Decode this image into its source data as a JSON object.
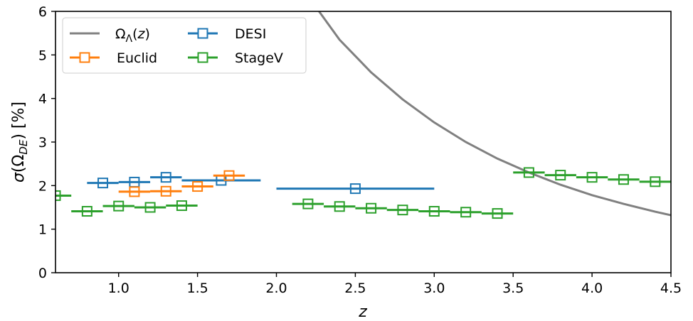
{
  "chart_data": {
    "type": "scatter",
    "xlabel": "z",
    "ylabel_prefix": "σ(Ω",
    "ylabel_sub": "DE",
    "ylabel_suffix": ") [%]",
    "xlim": [
      0.6,
      4.5
    ],
    "ylim": [
      0,
      6
    ],
    "xticks": [
      1.0,
      1.5,
      2.0,
      2.5,
      3.0,
      3.5,
      4.0,
      4.5
    ],
    "xtick_labels": [
      "1.0",
      "1.5",
      "2.0",
      "2.5",
      "3.0",
      "3.5",
      "4.0",
      "4.5"
    ],
    "yticks": [
      0,
      1,
      2,
      3,
      4,
      5,
      6
    ],
    "ytick_labels": [
      "0",
      "1",
      "2",
      "3",
      "4",
      "5",
      "6"
    ],
    "grid": false,
    "legend_placement": "top-left",
    "curve": {
      "name_main": "Ω",
      "name_sub": "Λ",
      "name_suffix": "(z)",
      "color": "#808080",
      "x": [
        2.27,
        2.4,
        2.6,
        2.8,
        3.0,
        3.2,
        3.4,
        3.6,
        3.8,
        4.0,
        4.2,
        4.4,
        4.5
      ],
      "y": [
        6.0,
        5.35,
        4.6,
        3.98,
        3.45,
        3.0,
        2.62,
        2.3,
        2.02,
        1.78,
        1.58,
        1.4,
        1.32
      ]
    },
    "series": [
      {
        "name": "DESI",
        "color": "#1f77b4",
        "points": [
          {
            "x": 0.9,
            "y": 2.06,
            "xerr": 0.1
          },
          {
            "x": 1.1,
            "y": 2.08,
            "xerr": 0.1
          },
          {
            "x": 1.3,
            "y": 2.19,
            "xerr": 0.1
          },
          {
            "x": 1.65,
            "y": 2.12,
            "xerr": 0.25
          },
          {
            "x": 2.5,
            "y": 1.93,
            "xerr": 0.5
          }
        ]
      },
      {
        "name": "Euclid",
        "color": "#ff7f0e",
        "points": [
          {
            "x": 1.1,
            "y": 1.86,
            "xerr": 0.1
          },
          {
            "x": 1.3,
            "y": 1.87,
            "xerr": 0.1
          },
          {
            "x": 1.5,
            "y": 1.98,
            "xerr": 0.1
          },
          {
            "x": 1.7,
            "y": 2.23,
            "xerr": 0.1
          }
        ]
      },
      {
        "name": "StageV",
        "color": "#2ca02c",
        "points": [
          {
            "x": 0.6,
            "y": 1.77,
            "xerr": 0.1
          },
          {
            "x": 0.8,
            "y": 1.41,
            "xerr": 0.1
          },
          {
            "x": 1.0,
            "y": 1.53,
            "xerr": 0.1
          },
          {
            "x": 1.2,
            "y": 1.5,
            "xerr": 0.1
          },
          {
            "x": 1.4,
            "y": 1.54,
            "xerr": 0.1
          },
          {
            "x": 2.2,
            "y": 1.58,
            "xerr": 0.1
          },
          {
            "x": 2.4,
            "y": 1.52,
            "xerr": 0.1
          },
          {
            "x": 2.6,
            "y": 1.48,
            "xerr": 0.1
          },
          {
            "x": 2.8,
            "y": 1.44,
            "xerr": 0.1
          },
          {
            "x": 3.0,
            "y": 1.41,
            "xerr": 0.1
          },
          {
            "x": 3.2,
            "y": 1.39,
            "xerr": 0.1
          },
          {
            "x": 3.4,
            "y": 1.36,
            "xerr": 0.1
          },
          {
            "x": 3.6,
            "y": 2.3,
            "xerr": 0.1
          },
          {
            "x": 3.8,
            "y": 2.24,
            "xerr": 0.1
          },
          {
            "x": 4.0,
            "y": 2.19,
            "xerr": 0.1
          },
          {
            "x": 4.2,
            "y": 2.14,
            "xerr": 0.1
          },
          {
            "x": 4.4,
            "y": 2.09,
            "xerr": 0.1
          }
        ]
      }
    ]
  }
}
